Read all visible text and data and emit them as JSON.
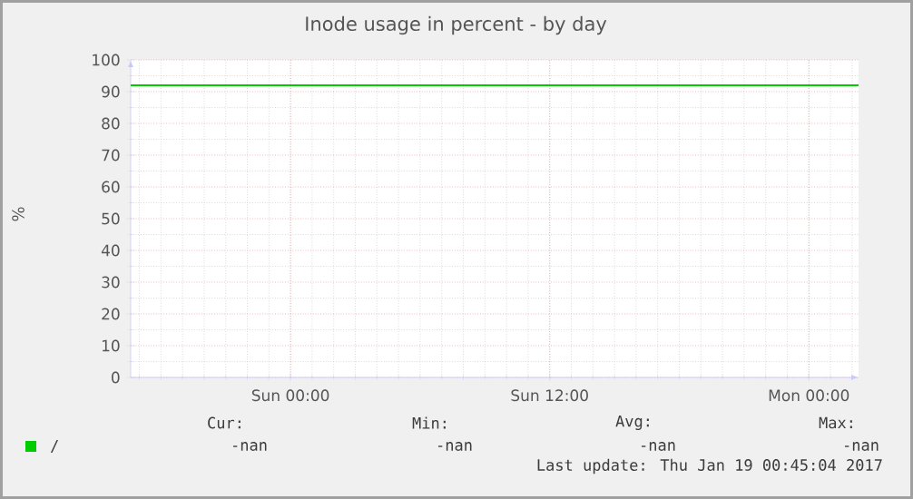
{
  "chart_data": {
    "type": "line",
    "title": "Inode usage in percent - by day",
    "ylabel": "%",
    "categories": [
      null,
      null,
      null,
      null,
      null,
      null,
      null,
      "Sun 00:00",
      null,
      null,
      null,
      null,
      null,
      null,
      null,
      null,
      null,
      null,
      null,
      "Sun 12:00",
      null,
      null,
      null,
      null,
      null,
      null,
      null,
      null,
      null,
      null,
      null,
      "Mon 00:00",
      null,
      null
    ],
    "series": [
      {
        "name": "/",
        "color": "#00cc00",
        "values": [
          null,
          null,
          null,
          null,
          null,
          null,
          null,
          null,
          null,
          null,
          null,
          null,
          null,
          null,
          null,
          null,
          null,
          null,
          null,
          null,
          null,
          null,
          null,
          null,
          null,
          null,
          null,
          null,
          null,
          null,
          null,
          null,
          null,
          null
        ]
      }
    ],
    "ylim": [
      0,
      100
    ],
    "yticks": [
      0,
      10,
      20,
      30,
      40,
      50,
      60,
      70,
      80,
      90,
      100
    ],
    "grid": true,
    "legend": "bottom left",
    "ref_lines": [
      {
        "axis": "y",
        "value": 92,
        "color": "#00cc00"
      }
    ],
    "annotations": [
      "Cur:",
      "Min:",
      "Avg:",
      "Max:",
      "-nan",
      "-nan",
      "-nan",
      "-nan",
      "Last update: Thu Jan 19 00:45:04 2017"
    ]
  }
}
